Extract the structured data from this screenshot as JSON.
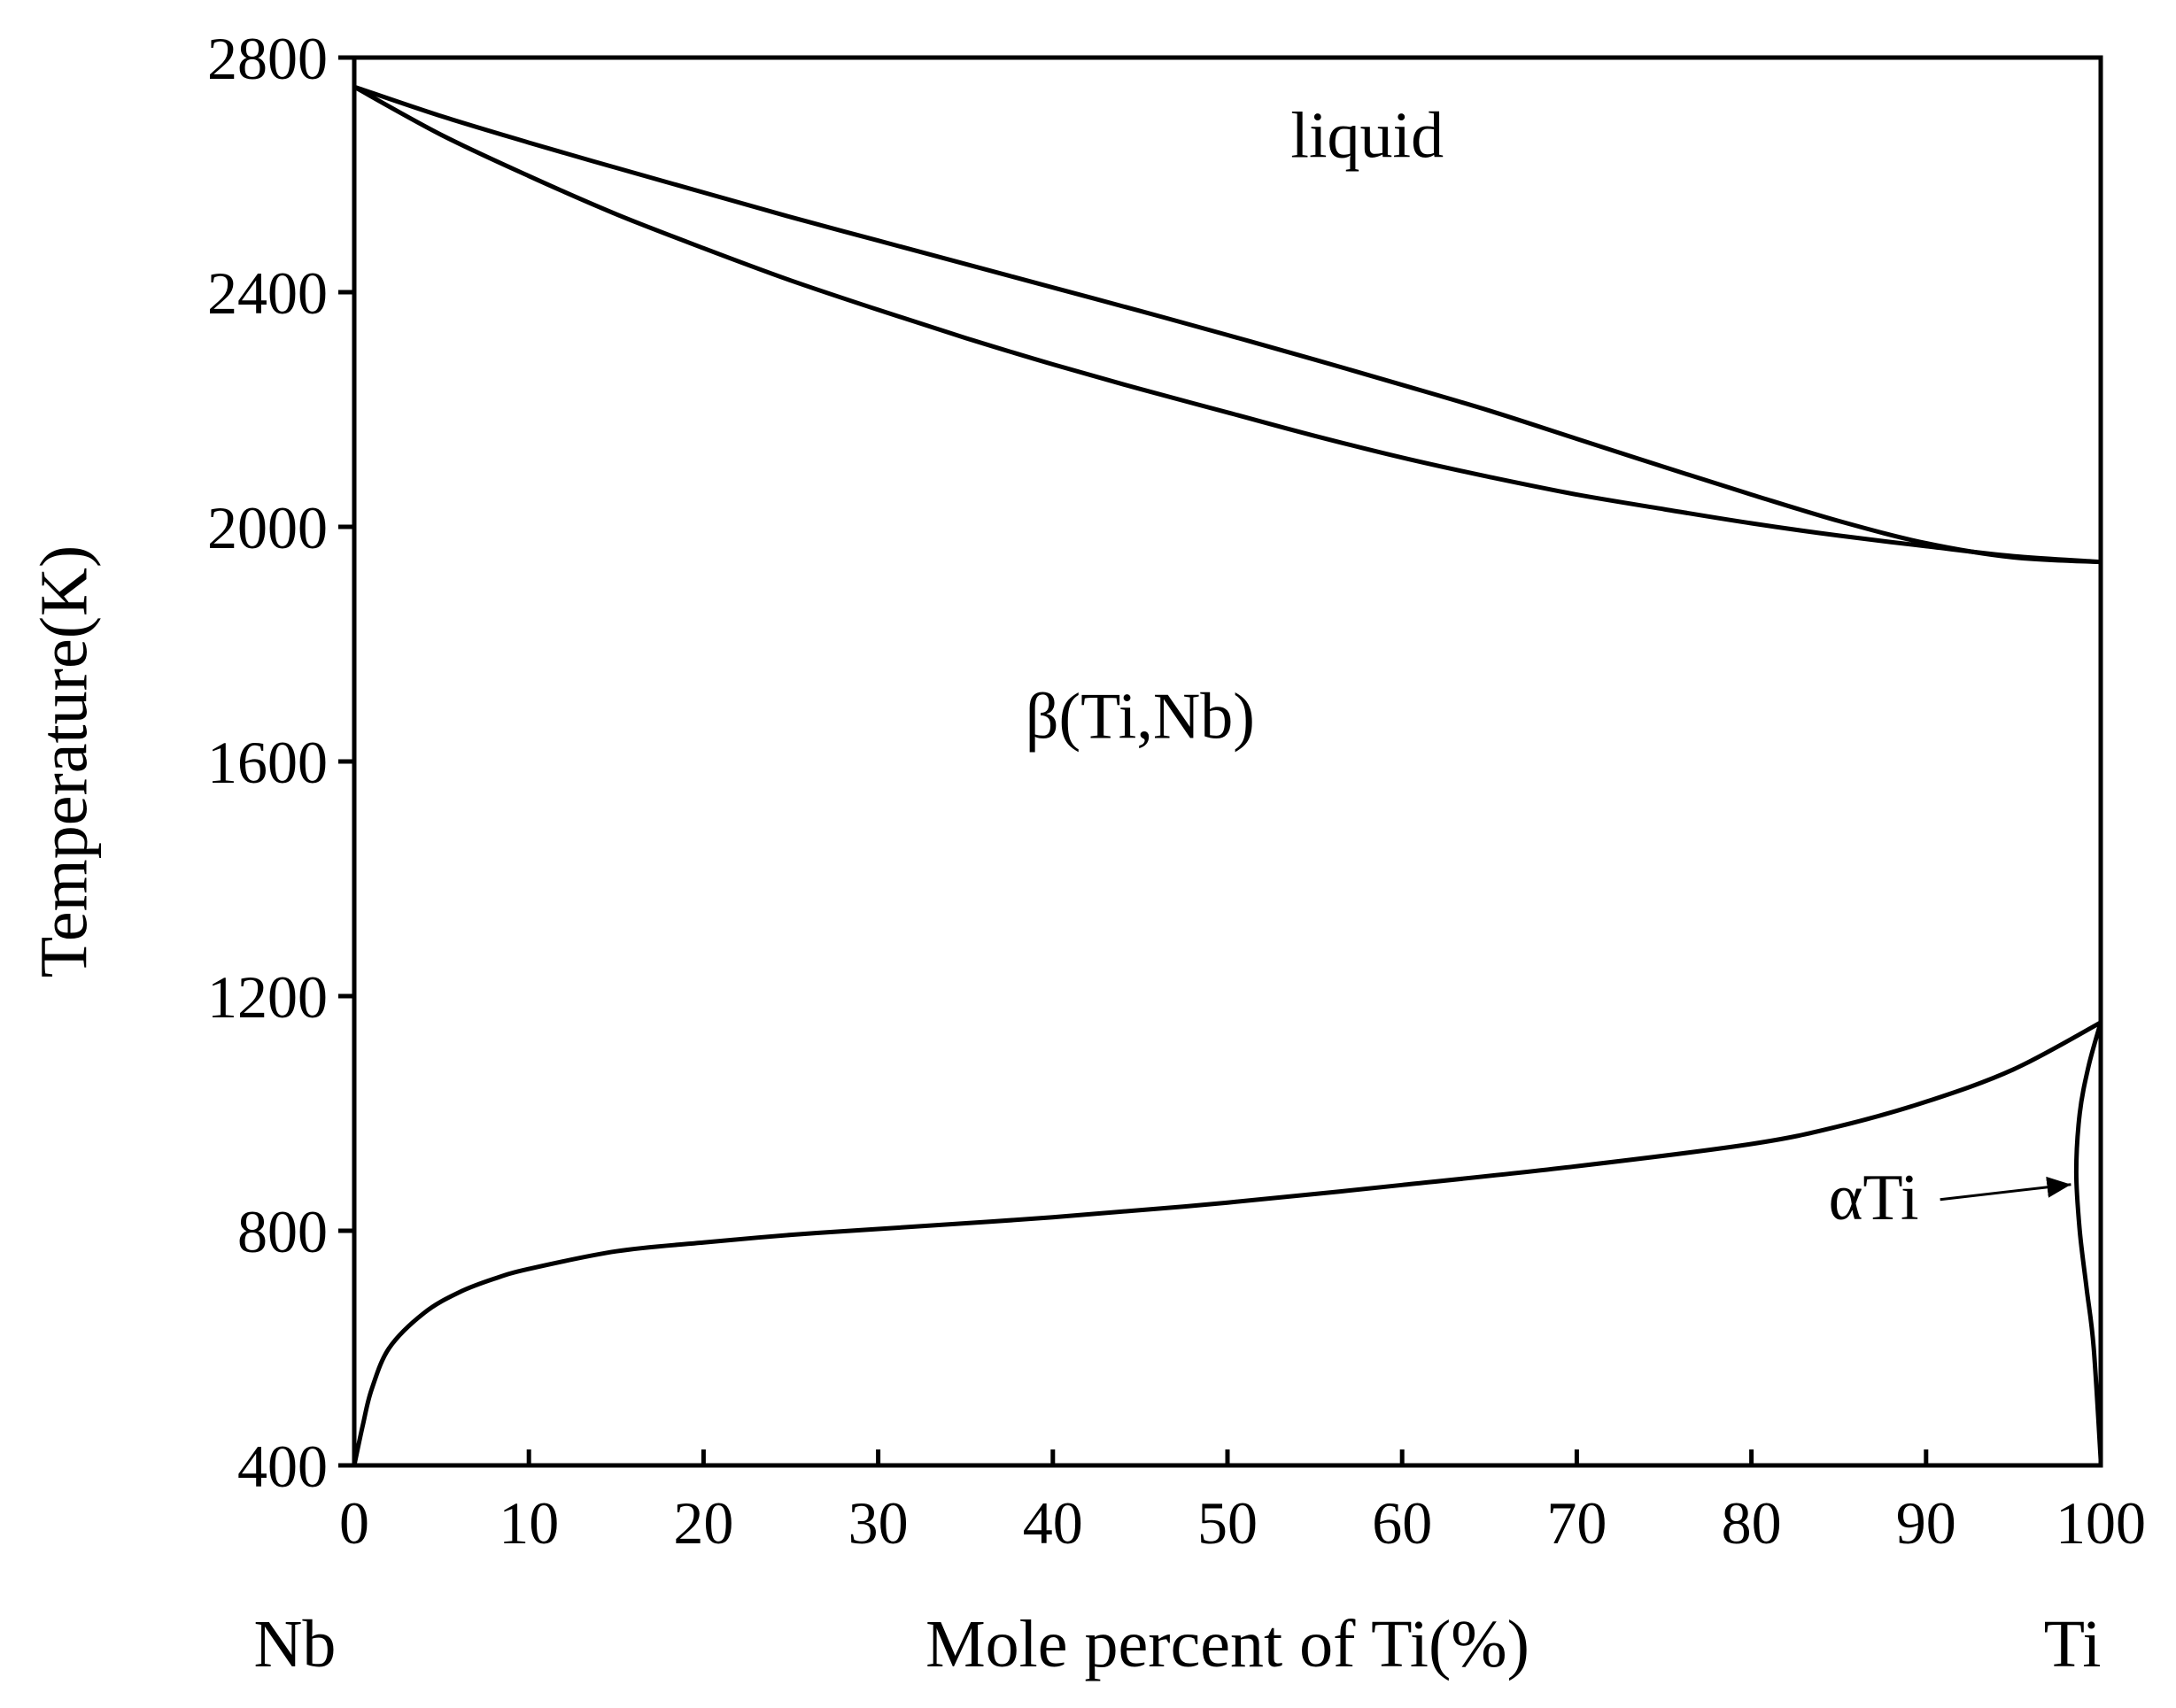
{
  "chart_data": {
    "type": "line",
    "title": "",
    "xlabel": "Mole percent of Ti(%)",
    "ylabel": "Temperature(K)",
    "xlim": [
      0,
      100
    ],
    "ylim": [
      400,
      2800
    ],
    "x_ticks": [
      0,
      10,
      20,
      30,
      40,
      50,
      60,
      70,
      80,
      90,
      100
    ],
    "y_ticks": [
      400,
      800,
      1200,
      1600,
      2000,
      2400,
      2800
    ],
    "x_end_labels": {
      "left": "Nb",
      "right": "Ti"
    },
    "grid": false,
    "legend": "none",
    "series": [
      {
        "x": [
          0,
          5,
          10,
          15,
          20,
          25,
          30,
          35,
          40,
          45,
          50,
          55,
          60,
          65,
          70,
          75,
          80,
          85,
          90,
          95,
          100
        ],
        "y": [
          2750,
          2700,
          2655,
          2612,
          2570,
          2528,
          2488,
          2448,
          2408,
          2368,
          2327,
          2285,
          2242,
          2198,
          2150,
          2102,
          2055,
          2010,
          1972,
          1948,
          1940
        ]
      },
      {
        "x": [
          0,
          5,
          10,
          15,
          20,
          25,
          30,
          35,
          40,
          45,
          50,
          55,
          60,
          65,
          70,
          75,
          80,
          85,
          90,
          95,
          100
        ],
        "y": [
          2750,
          2668,
          2598,
          2533,
          2475,
          2420,
          2370,
          2322,
          2277,
          2235,
          2195,
          2155,
          2118,
          2085,
          2055,
          2030,
          2006,
          1985,
          1967,
          1950,
          1940
        ]
      },
      {
        "x": [
          0,
          0.5,
          1,
          2,
          4,
          6,
          8,
          10,
          15,
          20,
          25,
          30,
          40,
          50,
          60,
          70,
          80,
          85,
          90,
          95,
          100
        ],
        "y": [
          400,
          470,
          530,
          600,
          660,
          695,
          718,
          735,
          765,
          780,
          793,
          803,
          823,
          848,
          878,
          910,
          948,
          978,
          1020,
          1075,
          1155
        ]
      },
      {
        "x": [
          100,
          99.3,
          98.8,
          98.6,
          98.8,
          99.2,
          99.6,
          100
        ],
        "y": [
          1155,
          1080,
          1000,
          900,
          800,
          700,
          600,
          410
        ]
      }
    ],
    "annotations": [
      {
        "text": "liquid",
        "x": 58,
        "y": 2630
      },
      {
        "text": "β(Ti,Nb)",
        "x": 45,
        "y": 1640
      },
      {
        "text": "αTi",
        "x": 87,
        "y": 820,
        "arrow_to": [
          98.6,
          900
        ]
      }
    ]
  }
}
